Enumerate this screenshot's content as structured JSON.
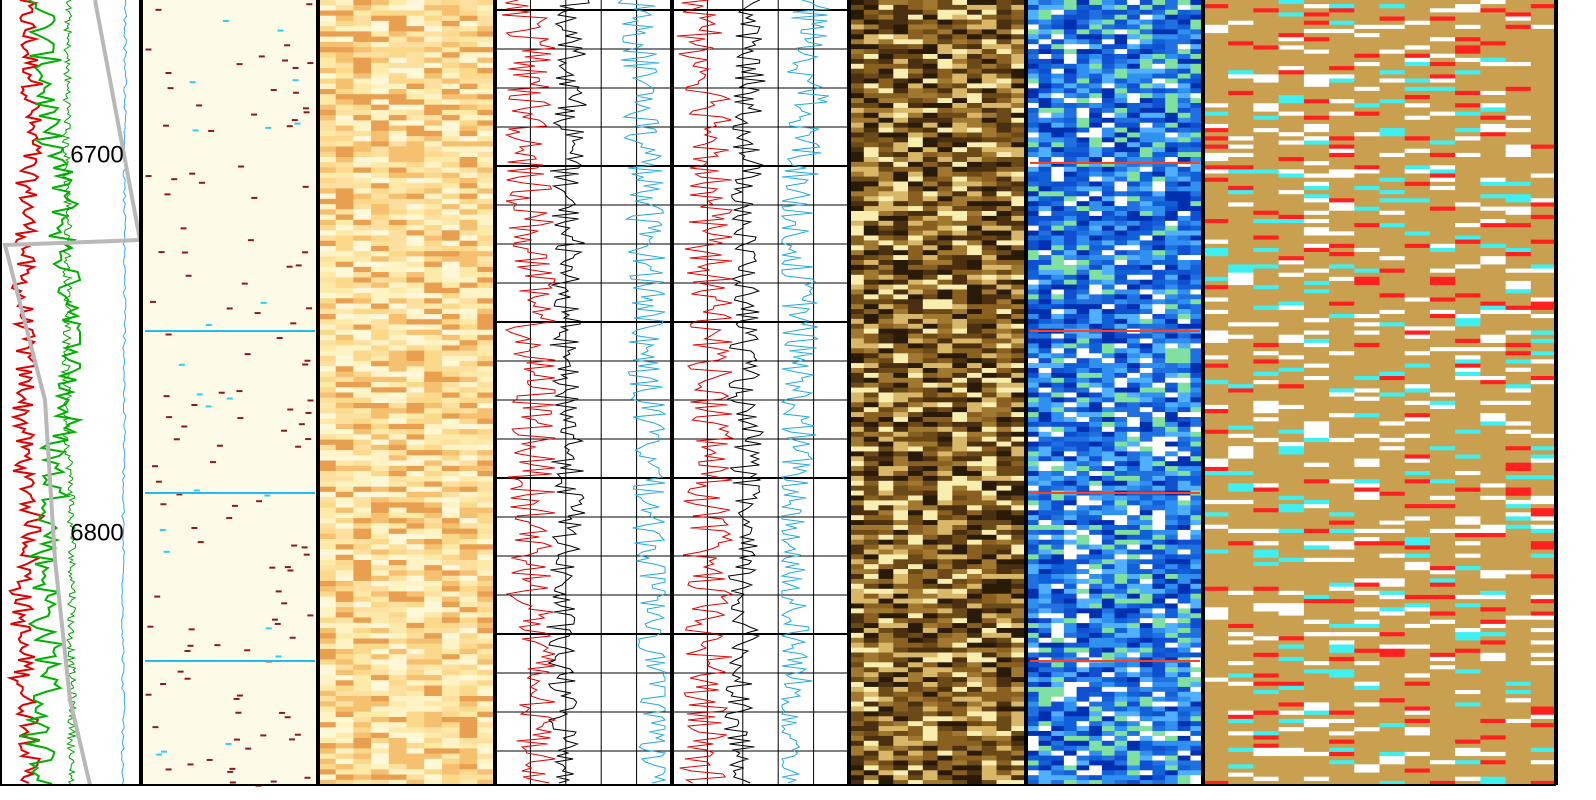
{
  "depth_labels": [
    6700,
    6800
  ]
}
